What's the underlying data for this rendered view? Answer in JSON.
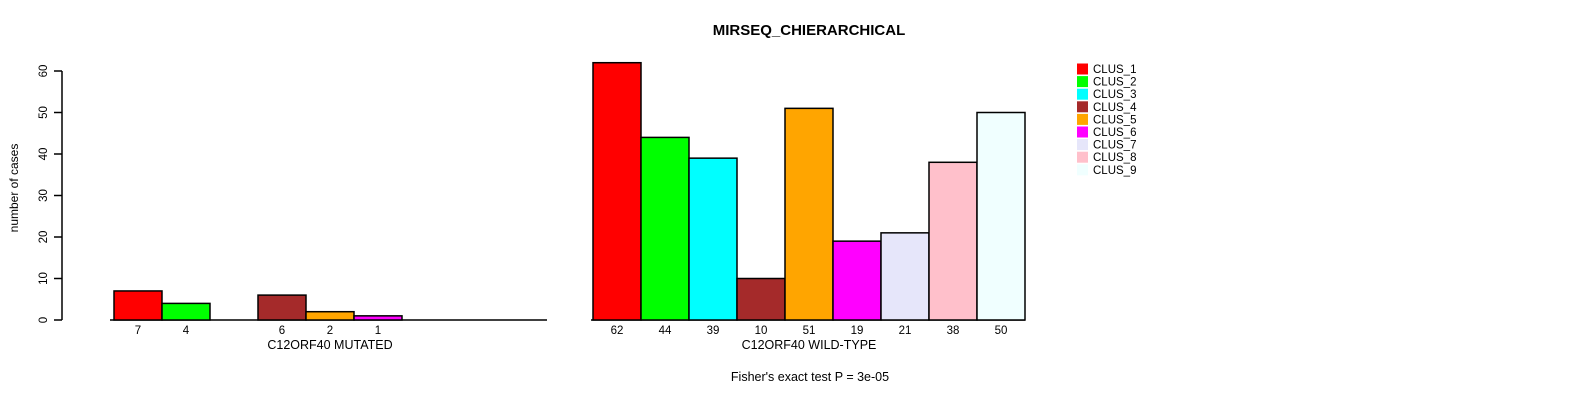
{
  "chart_data": {
    "type": "bar",
    "title": "MIRSEQ_CHIERARCHICAL",
    "ylabel": "number of cases",
    "ylim": [
      0,
      60
    ],
    "yticks": [
      0,
      10,
      20,
      30,
      40,
      50,
      60
    ],
    "grid": false,
    "categories": [
      "CLUS_1",
      "CLUS_2",
      "CLUS_3",
      "CLUS_4",
      "CLUS_5",
      "CLUS_6",
      "CLUS_7",
      "CLUS_8",
      "CLUS_9"
    ],
    "colors": [
      "#FF0000",
      "#00FF00",
      "#00FFFF",
      "#A52A2A",
      "#FFA500",
      "#FF00FF",
      "#E6E6FA",
      "#FFC0CB",
      "#F0FFFF"
    ],
    "panels": [
      {
        "xlabel": "C12ORF40 MUTATED",
        "values": [
          7,
          4,
          0,
          6,
          2,
          1,
          0,
          0,
          0
        ]
      },
      {
        "xlabel": "C12ORF40 WILD-TYPE",
        "values": [
          62,
          44,
          39,
          10,
          51,
          19,
          21,
          38,
          50
        ]
      }
    ],
    "annotation": "Fisher's exact test P = 3e-05",
    "legend_position": "right",
    "legend": [
      {
        "label": "CLUS_1",
        "color": "#FF0000"
      },
      {
        "label": "CLUS_2",
        "color": "#00FF00"
      },
      {
        "label": "CLUS_3",
        "color": "#00FFFF"
      },
      {
        "label": "CLUS_4",
        "color": "#A52A2A"
      },
      {
        "label": "CLUS_5",
        "color": "#FFA500"
      },
      {
        "label": "CLUS_6",
        "color": "#FF00FF"
      },
      {
        "label": "CLUS_7",
        "color": "#E6E6FA"
      },
      {
        "label": "CLUS_8",
        "color": "#FFC0CB"
      },
      {
        "label": "CLUS_9",
        "color": "#F0FFFF"
      }
    ],
    "text_color": "#000000",
    "bar_border_color": "#000000",
    "background_color": "#FFFFFF"
  }
}
